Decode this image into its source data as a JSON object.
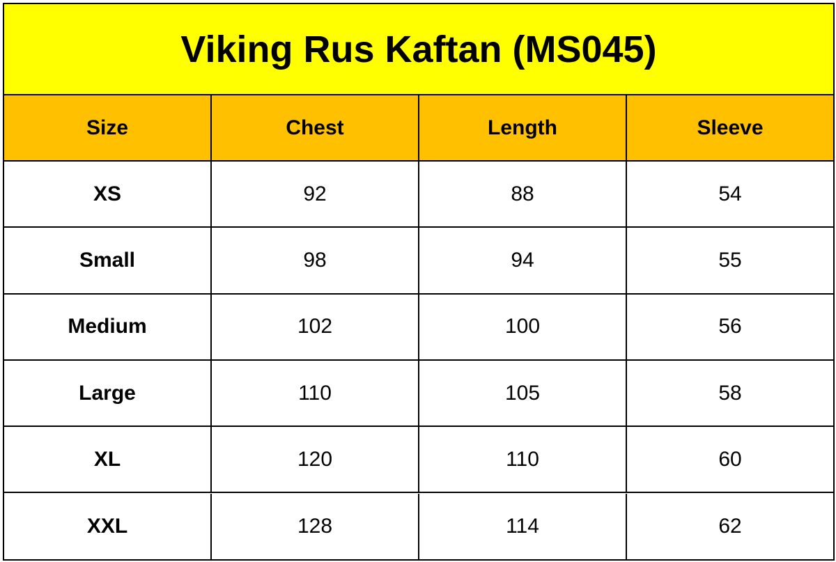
{
  "table": {
    "title": "Viking Rus Kaftan (MS045)",
    "header": [
      "Size",
      "Chest",
      "Length",
      "Sleeve"
    ],
    "rows": [
      [
        "XS",
        92,
        88,
        54
      ],
      [
        "Small",
        98,
        94,
        55
      ],
      [
        "Medium",
        102,
        100,
        56
      ],
      [
        "Large",
        110,
        105,
        58
      ],
      [
        "XL",
        120,
        110,
        60
      ],
      [
        "XXL",
        128,
        114,
        62
      ]
    ]
  }
}
